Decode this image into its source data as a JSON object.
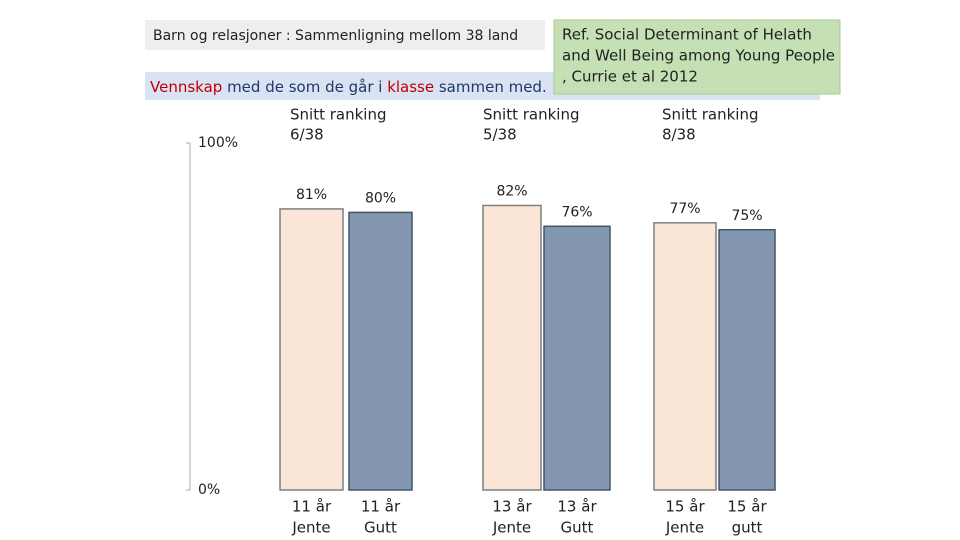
{
  "chart_data": {
    "type": "bar",
    "title": "Barn og relasjoner : Sammenligning mellom 38 land",
    "subtitle_parts": [
      {
        "text": "Vennskap",
        "color": "#c00000"
      },
      {
        "text": " med de som de går i ",
        "color": "#1f3864"
      },
      {
        "text": "klasse",
        "color": "#c00000"
      },
      {
        "text": " sammen med.",
        "color": "#1f3864"
      }
    ],
    "reference": [
      "Ref. Social Determinant of Helath",
      "and Well Being among Young People",
      ", Currie et al 2012"
    ],
    "groups": [
      [
        "Snitt ranking",
        "6/38"
      ],
      [
        "Snitt ranking",
        "5/38"
      ],
      [
        "Snitt ranking",
        "8/38"
      ]
    ],
    "categories": [
      [
        "11 år",
        "Jente"
      ],
      [
        "11 år",
        "Gutt"
      ],
      [
        "13 år",
        "Jente"
      ],
      [
        "13 år",
        "Gutt"
      ],
      [
        "15 år",
        "Jente"
      ],
      [
        "15 år",
        "gutt"
      ]
    ],
    "values": [
      81,
      80,
      82,
      76,
      77,
      75
    ],
    "value_labels": [
      "81%",
      "80%",
      "82%",
      "76%",
      "77%",
      "75%"
    ],
    "colors": [
      "#fbe5d6",
      "#8497b0",
      "#fbe5d6",
      "#8497b0",
      "#fbe5d6",
      "#8497b0"
    ],
    "ylim": [
      0,
      100
    ],
    "yticks": [
      {
        "value": 0,
        "label": "0%"
      },
      {
        "value": 100,
        "label": "100%"
      }
    ]
  }
}
